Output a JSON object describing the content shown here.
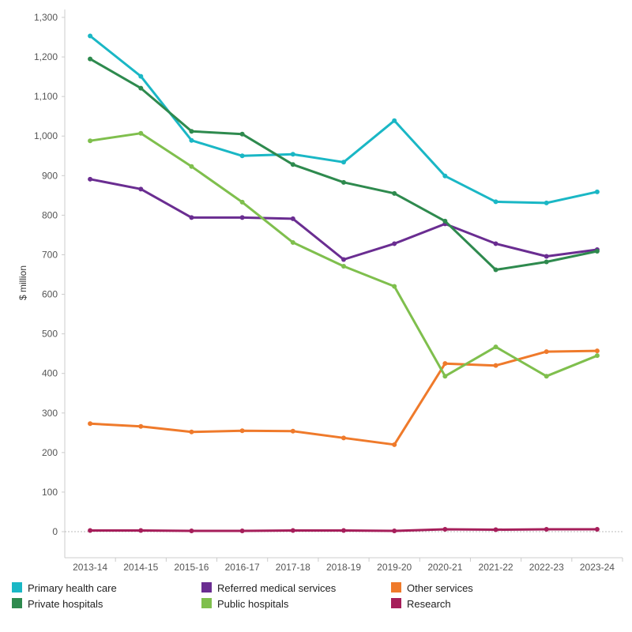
{
  "chart_data": {
    "type": "line",
    "title": "",
    "xlabel": "",
    "ylabel": "$ million",
    "ylim": [
      0,
      1300
    ],
    "y_ticks": [
      "0",
      "100",
      "200",
      "300",
      "400",
      "500",
      "600",
      "700",
      "800",
      "900",
      "1,000",
      "1,100",
      "1,200",
      "1,300"
    ],
    "categories": [
      "2013-14",
      "2014-15",
      "2015-16",
      "2016-17",
      "2017-18",
      "2018-19",
      "2019-20",
      "2020-21",
      "2021-22",
      "2022-23",
      "2023-24"
    ],
    "grid": "none (dotted zero line)",
    "legend_position": "bottom",
    "series": [
      {
        "name": "Primary health care",
        "color": "#1ab7c5",
        "values": [
          1253,
          1151,
          989,
          950,
          954,
          934,
          1039,
          899,
          834,
          831,
          859
        ]
      },
      {
        "name": "Referred medical services",
        "color": "#6a2d91",
        "values": [
          891,
          866,
          794,
          794,
          791,
          688,
          728,
          778,
          728,
          696,
          713
        ]
      },
      {
        "name": "Other services",
        "color": "#ef7a2b",
        "values": [
          273,
          266,
          252,
          255,
          254,
          237,
          220,
          425,
          420,
          455,
          457
        ]
      },
      {
        "name": "Private hospitals",
        "color": "#2e8a4e",
        "values": [
          1195,
          1121,
          1012,
          1005,
          928,
          883,
          855,
          785,
          662,
          682,
          709
        ]
      },
      {
        "name": "Public hospitals",
        "color": "#7fbf4d",
        "values": [
          988,
          1007,
          923,
          833,
          731,
          671,
          620,
          393,
          467,
          393,
          445
        ]
      },
      {
        "name": "Research",
        "color": "#a61e5a",
        "values": [
          3,
          3,
          2,
          2,
          3,
          3,
          2,
          6,
          5,
          6,
          6
        ]
      }
    ]
  }
}
